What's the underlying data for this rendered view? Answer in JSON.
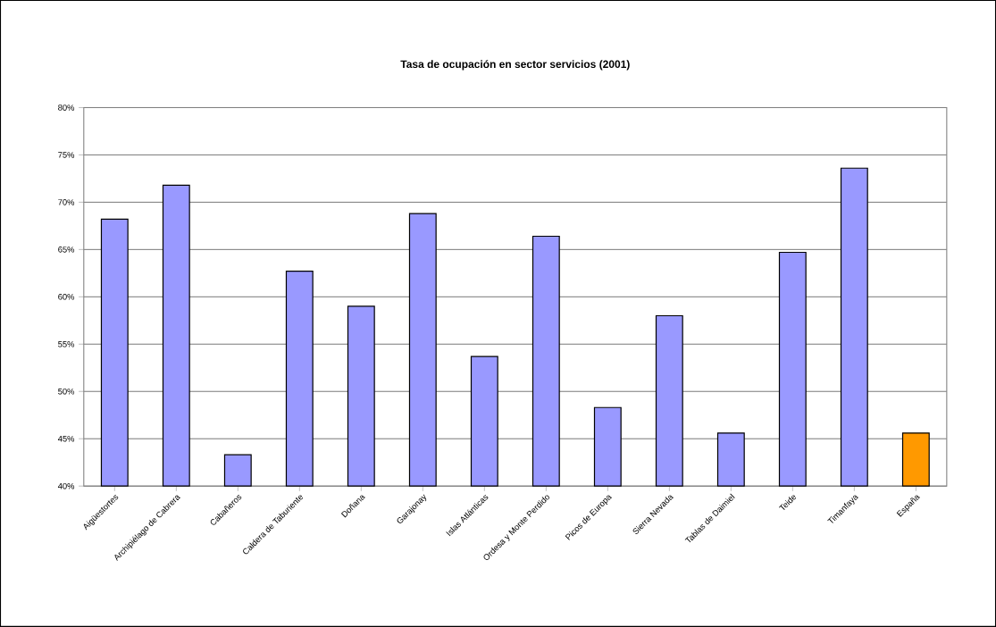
{
  "chart_data": {
    "type": "bar",
    "title": "Tasa de ocupación en sector servicios (2001)",
    "categories": [
      "Aigüestortes",
      "Archipiélago de Cabrera",
      "Cabañeros",
      "Caldera de Taburiente",
      "Doñana",
      "Garajonay",
      "Islas Atlánticas",
      "Ordesa y Monte Perdido",
      "Picos de Europa",
      "Sierra Nevada",
      "Tablas de Daimiel",
      "Teide",
      "Timanfaya",
      "España"
    ],
    "values": [
      68.2,
      71.8,
      43.3,
      62.7,
      59.0,
      68.8,
      53.7,
      66.4,
      48.3,
      58.0,
      45.6,
      64.7,
      73.6,
      45.6
    ],
    "colors": [
      "#9999ff",
      "#9999ff",
      "#9999ff",
      "#9999ff",
      "#9999ff",
      "#9999ff",
      "#9999ff",
      "#9999ff",
      "#9999ff",
      "#9999ff",
      "#9999ff",
      "#9999ff",
      "#9999ff",
      "#ff9900"
    ],
    "ylim": [
      40,
      80
    ],
    "yticks": [
      {
        "value": 40,
        "label": "40%"
      },
      {
        "value": 45,
        "label": "45%"
      },
      {
        "value": 50,
        "label": "50%"
      },
      {
        "value": 55,
        "label": "55%"
      },
      {
        "value": 60,
        "label": "60%"
      },
      {
        "value": 65,
        "label": "65%"
      },
      {
        "value": 70,
        "label": "70%"
      },
      {
        "value": 75,
        "label": "75%"
      },
      {
        "value": 80,
        "label": "80%"
      }
    ],
    "grid": "y"
  }
}
